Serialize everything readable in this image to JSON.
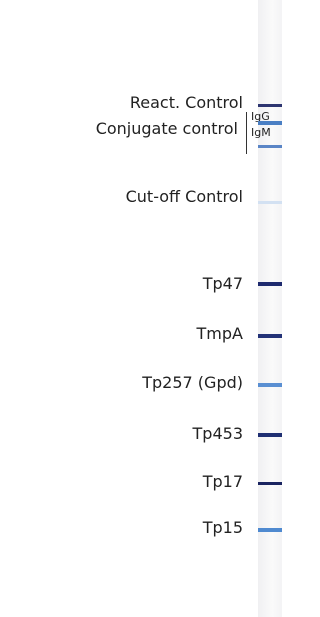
{
  "strip": {
    "reaction_control": "React. Control",
    "conjugate_control": {
      "label": "Conjugate control",
      "igg": "IgG",
      "igm": "IgM"
    },
    "cutoff_control": "Cut-off Control",
    "antigens": [
      "Tp47",
      "TmpA",
      "Tp257 (Gpd)",
      "Tp453",
      "Tp17",
      "Tp15"
    ]
  }
}
